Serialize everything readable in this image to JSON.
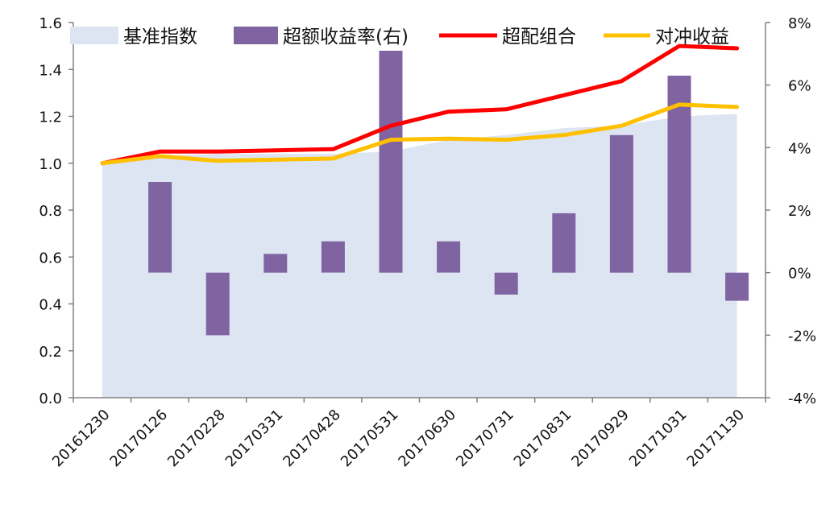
{
  "chart_data": {
    "type": "combo",
    "categories": [
      "20161230",
      "20170126",
      "20170228",
      "20170331",
      "20170428",
      "20170531",
      "20170630",
      "20170731",
      "20170831",
      "20170929",
      "20171031",
      "20171130"
    ],
    "left_axis": {
      "min": 0.0,
      "max": 1.6,
      "step": 0.2,
      "ticks": [
        "0.0",
        "0.2",
        "0.4",
        "0.6",
        "0.8",
        "1.0",
        "1.2",
        "1.4",
        "1.6"
      ]
    },
    "right_axis": {
      "min": -4,
      "max": 8,
      "step": 2,
      "ticks": [
        "-4%",
        "-2%",
        "0%",
        "2%",
        "4%",
        "6%",
        "8%"
      ]
    },
    "series": [
      {
        "name": "基准指数",
        "kind": "area",
        "axis": "left",
        "color": "#dce5f1",
        "values": [
          1.0,
          1.03,
          1.04,
          1.04,
          1.04,
          1.05,
          1.1,
          1.12,
          1.15,
          1.16,
          1.2,
          1.21
        ]
      },
      {
        "name": "超额收益率(右)",
        "kind": "bar",
        "axis": "right",
        "color": "#8064a2",
        "values": [
          null,
          2.9,
          -2.0,
          0.6,
          1.0,
          7.1,
          1.0,
          -0.7,
          1.9,
          4.4,
          6.3,
          -0.9
        ]
      },
      {
        "name": "超配组合",
        "kind": "line",
        "axis": "left",
        "color": "#ff0000",
        "values": [
          1.0,
          1.05,
          1.05,
          1.055,
          1.06,
          1.16,
          1.22,
          1.23,
          1.29,
          1.35,
          1.5,
          1.49
        ]
      },
      {
        "name": "对冲收益",
        "kind": "line",
        "axis": "left",
        "color": "#ffc000",
        "values": [
          1.0,
          1.03,
          1.01,
          1.015,
          1.02,
          1.1,
          1.105,
          1.1,
          1.12,
          1.16,
          1.25,
          1.24
        ]
      }
    ],
    "legend_position": "top",
    "grid": false
  }
}
